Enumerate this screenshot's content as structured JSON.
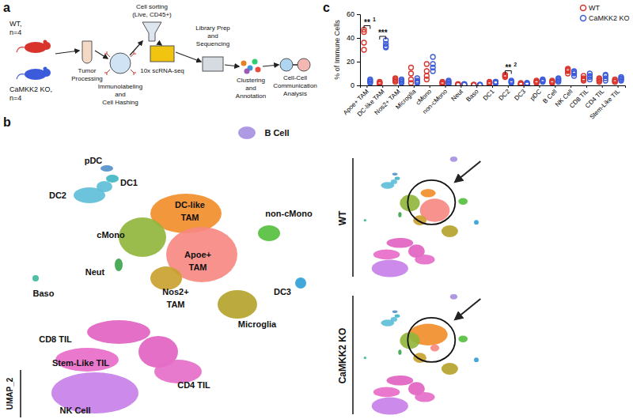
{
  "panel_labels": [
    "a",
    "b",
    "c"
  ],
  "workflow": {
    "groups": [
      {
        "name": "WT,",
        "n": "n=4",
        "color": "#d9342b"
      },
      {
        "name": "CaMKK2 KO,",
        "n": "n=4",
        "color": "#3b5bdb"
      }
    ],
    "steps": [
      {
        "lines": [
          "Tumor",
          "Processing"
        ]
      },
      {
        "lines": [
          "Immunolabeling",
          "and",
          "Cell Hashing"
        ]
      },
      {
        "lines": [
          "Cell sorting",
          "(Live, CD45+)"
        ]
      },
      {
        "lines": [
          "10x scRNA-seq"
        ]
      },
      {
        "lines": [
          "Library Prep",
          "and",
          "Sequencing"
        ]
      },
      {
        "lines": [
          "Clustering",
          "and",
          "Annotation"
        ]
      },
      {
        "lines": [
          "Cell-Cell",
          "Communication",
          "Analysis"
        ]
      }
    ]
  },
  "umap": {
    "axis_label": "UMAP_2",
    "conditions": [
      "WT",
      "CaMKK2 KO"
    ],
    "clusters": [
      {
        "label": [
          "B Cell"
        ],
        "color": "#a58fe0"
      },
      {
        "label": [
          "pDC"
        ],
        "color": "#4f8fc9"
      },
      {
        "label": [
          "DC1"
        ],
        "color": "#3cb6c4"
      },
      {
        "label": [
          "DC2"
        ],
        "color": "#5bbcd8"
      },
      {
        "label": [
          "DC-like",
          "TAM"
        ],
        "color": "#f28c28"
      },
      {
        "label": [
          "non-cMono"
        ],
        "color": "#52bf3a"
      },
      {
        "label": [
          "cMono"
        ],
        "color": "#8fb53a"
      },
      {
        "label": [
          "Apoe+",
          "TAM"
        ],
        "color": "#f6877f"
      },
      {
        "label": [
          "Neut"
        ],
        "color": "#3aa34a"
      },
      {
        "label": [
          "Baso"
        ],
        "color": "#38b89b"
      },
      {
        "label": [
          "Nos2+",
          "TAM"
        ],
        "color": "#c9a02c"
      },
      {
        "label": [
          "Microglia"
        ],
        "color": "#b4a22a"
      },
      {
        "label": [
          "DC3"
        ],
        "color": "#2e9fd6"
      },
      {
        "label": [
          "CD8 TIL"
        ],
        "color": "#e060c0"
      },
      {
        "label": [
          "Stem-Like TIL"
        ],
        "color": "#e869c8"
      },
      {
        "label": [
          "CD4 TIL"
        ],
        "color": "#e46cc6"
      },
      {
        "label": [
          "NK Cell"
        ],
        "color": "#c67de8"
      }
    ]
  },
  "chart_data": {
    "type": "scatter",
    "marker": "open-circle",
    "y_label": "% of Immune Cells",
    "categories": [
      "Apoe+ TAM",
      "DC-like TAM",
      "Nos2+ TAM",
      "Microglia",
      "cMono",
      "non-cMono",
      "Neut",
      "Baso",
      "DC1",
      "DC2",
      "DC3",
      "pDC",
      "B Cell",
      "NK Cell",
      "CD8 TIL",
      "CD4 TIL",
      "Stem-Like TIL"
    ],
    "series": [
      {
        "name": "WT",
        "color": "#d9342b",
        "values": [
          [
            45,
            47,
            36,
            30
          ],
          [
            2,
            1,
            3,
            2
          ],
          [
            5,
            3,
            6,
            4
          ],
          [
            15,
            10,
            5,
            2
          ],
          [
            18,
            12,
            8,
            5
          ],
          [
            2,
            3,
            1,
            2
          ],
          [
            1,
            0.5,
            1,
            0.5
          ],
          [
            0.5,
            0.3,
            0.5,
            0.4
          ],
          [
            2,
            1,
            2,
            3
          ],
          [
            8,
            7,
            9,
            8
          ],
          [
            1,
            2,
            1,
            1
          ],
          [
            3,
            4,
            2,
            3
          ],
          [
            3,
            2,
            4,
            3
          ],
          [
            13,
            12,
            10,
            14
          ],
          [
            6,
            8,
            5,
            4
          ],
          [
            4,
            3,
            5,
            6
          ],
          [
            3,
            4,
            5,
            3
          ]
        ]
      },
      {
        "name": "CaMKK2 KO",
        "color": "#3b5bdb",
        "values": [
          [
            3,
            2,
            4,
            5
          ],
          [
            35,
            33,
            32,
            38
          ],
          [
            3,
            2,
            4,
            5
          ],
          [
            6,
            3,
            2,
            4
          ],
          [
            24,
            15,
            18,
            12
          ],
          [
            3,
            4,
            2,
            1
          ],
          [
            1,
            1,
            0.5,
            1
          ],
          [
            0.5,
            0.4,
            0.3,
            0.5
          ],
          [
            3,
            2,
            3,
            2
          ],
          [
            3,
            2,
            4,
            3
          ],
          [
            2,
            1,
            2,
            1
          ],
          [
            4,
            3,
            5,
            4
          ],
          [
            5,
            4,
            6,
            3
          ],
          [
            10,
            8,
            11,
            12
          ],
          [
            7,
            10,
            5,
            8
          ],
          [
            9,
            6,
            4,
            8
          ],
          [
            6,
            7,
            4,
            5
          ]
        ]
      }
    ],
    "ylim": [
      0,
      60
    ],
    "yticks": [
      0,
      20,
      40,
      60
    ],
    "grid": false,
    "legend": "top-right",
    "annotations": [
      {
        "category": "Apoe+ TAM",
        "text": "**",
        "superscript": "1"
      },
      {
        "category": "DC-like TAM",
        "text": "***"
      },
      {
        "category": "DC2",
        "text": "**",
        "superscript": "2"
      }
    ]
  }
}
